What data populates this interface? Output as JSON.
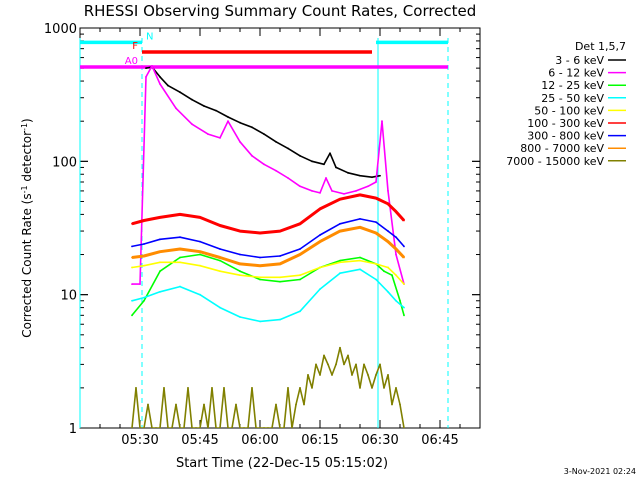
{
  "title": "RHESSI Observing Summary Count Rates, Corrected",
  "footer_date": "3-Nov-2021 02:24",
  "chart_data": {
    "type": "line",
    "title": "RHESSI Observing Summary Count Rates, Corrected",
    "xlabel": "Start Time (22-Dec-15 05:15:02)",
    "ylabel": "Corrected Count Rate (s^-1 detector^-1)",
    "y_scale": "log",
    "ylim": [
      1,
      1000
    ],
    "xlim_minutes_after_start": [
      0,
      100
    ],
    "x_tick_labels": [
      "05:30",
      "05:45",
      "06:00",
      "06:15",
      "06:30",
      "06:45"
    ],
    "x_tick_minutes_after_start": [
      15,
      30,
      45,
      60,
      75,
      90
    ],
    "y_tick_labels": [
      "1",
      "10",
      "100",
      "1000"
    ],
    "legend_title": "Det 1,5,7",
    "legend_position": "right, outside plot",
    "series": [
      {
        "name": "3 - 6 keV",
        "color": "#000000",
        "x": [
          16.5,
          18,
          20,
          22,
          25,
          28,
          31,
          34,
          37,
          40,
          43,
          46,
          49,
          52,
          55,
          58,
          61,
          62.5,
          64,
          67,
          70,
          73,
          75
        ],
        "y": [
          500,
          510,
          430,
          370,
          330,
          290,
          260,
          240,
          215,
          195,
          180,
          160,
          140,
          125,
          110,
          100,
          95,
          115,
          90,
          82,
          78,
          76,
          78
        ]
      },
      {
        "name": "6 - 12 keV",
        "color": "#ff00ff",
        "x": [
          13,
          15,
          16.5,
          18,
          20,
          24,
          28,
          32,
          35,
          37,
          40,
          43,
          46,
          49,
          52,
          55,
          58,
          60,
          61.5,
          63,
          66,
          69,
          72,
          74,
          75.5,
          77,
          79,
          81
        ],
        "y": [
          12,
          12,
          430,
          520,
          380,
          250,
          190,
          160,
          150,
          200,
          140,
          110,
          95,
          85,
          75,
          65,
          60,
          58,
          75,
          60,
          57,
          60,
          65,
          70,
          200,
          60,
          20,
          12
        ]
      },
      {
        "name": "12 - 25 keV",
        "color": "#00ff00",
        "x": [
          13,
          16,
          20,
          25,
          30,
          35,
          40,
          45,
          50,
          55,
          60,
          65,
          70,
          74,
          76,
          78,
          80,
          81
        ],
        "y": [
          7,
          9,
          15,
          19,
          20,
          18,
          15,
          13,
          12.5,
          13,
          16,
          18,
          19,
          17,
          15,
          14,
          9,
          7
        ]
      },
      {
        "name": "25 - 50 keV",
        "color": "#00ffff",
        "x": [
          13,
          16,
          20,
          25,
          30,
          35,
          40,
          45,
          50,
          55,
          60,
          65,
          70,
          74,
          77,
          79,
          81
        ],
        "y": [
          9,
          9.5,
          10.5,
          11.5,
          10,
          8,
          6.8,
          6.3,
          6.5,
          7.5,
          11,
          14.5,
          15.5,
          13,
          10.5,
          9,
          8
        ]
      },
      {
        "name": "50 - 100 keV",
        "color": "#ffff00",
        "x": [
          13,
          16,
          20,
          25,
          30,
          35,
          40,
          45,
          50,
          55,
          60,
          65,
          70,
          74,
          77,
          79,
          81
        ],
        "y": [
          16,
          16.5,
          17.5,
          17.5,
          16.5,
          15,
          14,
          13.5,
          13.5,
          14,
          16,
          17.5,
          18,
          17,
          16,
          14,
          12
        ]
      },
      {
        "name": "100 - 300 keV",
        "color": "#ff0000",
        "x": [
          13,
          16,
          20,
          25,
          30,
          35,
          40,
          45,
          50,
          55,
          60,
          65,
          70,
          74,
          77,
          79,
          81
        ],
        "y": [
          34,
          36,
          38,
          40,
          38,
          33,
          30,
          29,
          30,
          34,
          44,
          52,
          56,
          53,
          48,
          42,
          36
        ]
      },
      {
        "name": "300 - 800 keV",
        "color": "#0000ff",
        "x": [
          13,
          16,
          20,
          25,
          30,
          35,
          40,
          45,
          50,
          55,
          60,
          65,
          70,
          74,
          77,
          79,
          81
        ],
        "y": [
          23,
          24,
          26,
          27,
          25,
          22,
          20,
          19,
          19.5,
          22,
          28,
          34,
          37,
          35,
          30,
          27,
          23
        ]
      },
      {
        "name": "800 - 7000 keV",
        "color": "#ff8c00",
        "x": [
          13,
          16,
          20,
          25,
          30,
          35,
          40,
          45,
          50,
          55,
          60,
          65,
          70,
          74,
          77,
          79,
          81
        ],
        "y": [
          19,
          19.5,
          21,
          22,
          21,
          19,
          17,
          16.5,
          17,
          20,
          25,
          30,
          32,
          29,
          25,
          22,
          19
        ]
      },
      {
        "name": "7000 - 15000 keV",
        "color": "#808000",
        "x": [
          13,
          14,
          15,
          16,
          17,
          18,
          19,
          20,
          21,
          22,
          23,
          24,
          25,
          26,
          27,
          28,
          29,
          30,
          31,
          32,
          33,
          34,
          35,
          36,
          37,
          38,
          39,
          40,
          41,
          42,
          43,
          44,
          45,
          46,
          47,
          48,
          49,
          50,
          51,
          52,
          53,
          54,
          55,
          56,
          57,
          58,
          59,
          60,
          61,
          62,
          63,
          64,
          65,
          66,
          67,
          68,
          69,
          70,
          71,
          72,
          73,
          74,
          75,
          76,
          77,
          78,
          79,
          80,
          81
        ],
        "y": [
          1,
          2,
          1,
          1,
          1.5,
          1,
          1,
          1,
          2,
          1,
          1,
          1.5,
          1,
          1,
          2,
          1,
          1,
          1,
          1.5,
          1,
          2,
          1,
          1,
          2,
          1,
          1,
          1.5,
          1,
          1,
          1,
          2,
          1,
          1,
          1,
          1,
          1,
          1.5,
          1,
          1,
          2,
          1,
          1.5,
          2,
          1.5,
          2.5,
          2,
          3,
          2.5,
          3.5,
          3,
          2.5,
          3,
          4,
          3,
          3.5,
          2.5,
          3,
          2,
          3,
          2.5,
          2,
          2.5,
          3,
          2,
          2.5,
          1.5,
          2,
          1.5,
          1
        ]
      }
    ],
    "annotations": {
      "state_bars": [
        {
          "label": "N",
          "color": "#00ffff",
          "x_intervals": [
            [
              0,
              15.5
            ],
            [
              74,
              92
            ]
          ],
          "level": 780
        },
        {
          "label": "F",
          "color": "#ff0000",
          "x_intervals": [
            [
              15.5,
              73
            ]
          ],
          "level": 660
        },
        {
          "label": "A0",
          "color": "#ff00ff",
          "x_intervals": [
            [
              0,
              15.5
            ],
            [
              15.5,
              92
            ]
          ],
          "level": 510
        }
      ],
      "vertical_lines": [
        {
          "x": 0,
          "color": "#00ffff",
          "style": "solid"
        },
        {
          "x": 15.5,
          "color": "#00ffff",
          "style": "dashed"
        },
        {
          "x": 74.5,
          "color": "#00ffff",
          "style": "solid"
        },
        {
          "x": 92,
          "color": "#00ffff",
          "style": "dashed"
        }
      ]
    }
  }
}
